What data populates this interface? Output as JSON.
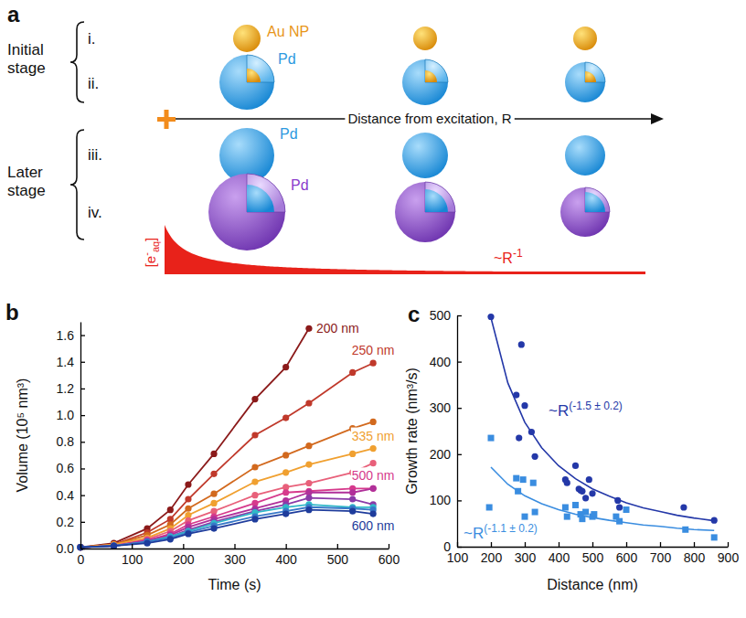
{
  "diagram": {
    "letter": "a",
    "stages": [
      {
        "label": "Initial stage",
        "rows": [
          {
            "label": "i.",
            "caption": "Au NP"
          },
          {
            "label": "ii.",
            "caption": "Pd"
          }
        ]
      },
      {
        "label": "Later stage",
        "rows": [
          {
            "label": "iii.",
            "caption": "Pd"
          },
          {
            "label": "iv.",
            "caption": "Pd"
          }
        ]
      }
    ],
    "axis_label": "Distance from excitation, R",
    "concentration_label": {
      "open": "[e",
      "sup": "-",
      "sub": "aq",
      "close": "]"
    },
    "decay_label": {
      "base": "~R",
      "exponent": "-1"
    }
  },
  "chart_data": [
    {
      "panel_label": "b",
      "type": "line",
      "marker": "circle",
      "x_label": "Time (s)",
      "y_label": "Volume (10⁵ nm³)",
      "x": [
        0,
        65,
        130,
        175,
        210,
        260,
        340,
        400,
        445,
        530,
        570
      ],
      "xlim": [
        0,
        600
      ],
      "xticks": [
        0,
        100,
        200,
        300,
        400,
        500,
        600
      ],
      "ylim": [
        0,
        1.7
      ],
      "yticks": [
        {
          "value": 0,
          "label": "0.0"
        },
        0.2,
        0.4,
        0.6,
        0.8,
        {
          "value": 1,
          "label": "1.0"
        },
        1.2,
        1.4,
        1.6
      ],
      "series": [
        {
          "name": "200 nm",
          "color": "#8b1a1a",
          "values": [
            0.01,
            0.04,
            0.15,
            0.29,
            0.48,
            0.71,
            1.12,
            1.36,
            1.65,
            null,
            null
          ]
        },
        {
          "name": "250 nm",
          "color": "#c0392b",
          "values": [
            0.01,
            0.03,
            0.12,
            0.22,
            0.37,
            0.56,
            0.85,
            0.98,
            1.09,
            1.32,
            1.39
          ]
        },
        {
          "color": "#d2691e",
          "values": [
            0.01,
            0.03,
            0.1,
            0.18,
            0.3,
            0.41,
            0.61,
            0.7,
            0.77,
            0.9,
            0.95
          ]
        },
        {
          "name": "335 nm",
          "color": "#f0a030",
          "values": [
            0.01,
            0.03,
            0.08,
            0.15,
            0.25,
            0.34,
            0.5,
            0.57,
            0.63,
            0.71,
            0.75
          ]
        },
        {
          "color": "#e8607a",
          "values": [
            0.01,
            0.02,
            0.07,
            0.13,
            0.21,
            0.28,
            0.4,
            0.46,
            0.49,
            0.57,
            0.64
          ]
        },
        {
          "name": "500 nm",
          "color": "#d63a8c",
          "values": [
            0.01,
            0.02,
            0.06,
            0.11,
            0.18,
            0.24,
            0.34,
            0.42,
            0.43,
            0.45,
            0.45
          ]
        },
        {
          "color": "#b0309a",
          "values": [
            0.01,
            0.02,
            0.06,
            0.1,
            0.16,
            0.22,
            0.3,
            0.36,
            0.42,
            0.42,
            0.45
          ]
        },
        {
          "color": "#8a3aa8",
          "values": [
            0.01,
            0.02,
            0.05,
            0.09,
            0.14,
            0.2,
            0.28,
            0.33,
            0.38,
            0.37,
            0.33
          ]
        },
        {
          "color": "#30b8c8",
          "values": [
            0.01,
            0.02,
            0.05,
            0.09,
            0.13,
            0.19,
            0.27,
            0.31,
            0.33,
            0.31,
            0.31
          ]
        },
        {
          "color": "#3878c8",
          "values": [
            0.01,
            0.02,
            0.05,
            0.08,
            0.12,
            0.17,
            0.24,
            0.28,
            0.31,
            0.3,
            0.29
          ]
        },
        {
          "name": "600 nm",
          "color": "#1e3c9c",
          "values": [
            0.01,
            0.02,
            0.04,
            0.07,
            0.11,
            0.15,
            0.22,
            0.26,
            0.29,
            0.28,
            0.26
          ]
        }
      ]
    },
    {
      "panel_label": "c",
      "type": "scatter",
      "x_label": "Distance (nm)",
      "y_label": "Growth rate (nm³/s)",
      "xlim": [
        100,
        900
      ],
      "xticks": [
        100,
        200,
        300,
        400,
        500,
        600,
        700,
        800,
        900
      ],
      "ylim": [
        0,
        500
      ],
      "yticks": [
        0,
        100,
        200,
        300,
        400,
        500
      ],
      "series": [
        {
          "type": "scatter",
          "marker": "circle",
          "color": "#2438a8",
          "x": [
            200,
            275,
            283,
            290,
            300,
            320,
            330,
            420,
            425,
            450,
            460,
            465,
            470,
            480,
            490,
            500,
            575,
            580,
            770,
            860
          ],
          "values": [
            497,
            328,
            235,
            437,
            305,
            248,
            195,
            145,
            138,
            175,
            125,
            122,
            120,
            105,
            145,
            115,
            100,
            85,
            85,
            57
          ]
        },
        {
          "type": "scatter",
          "marker": "square",
          "color": "#3a8de0",
          "x": [
            195,
            200,
            275,
            280,
            295,
            300,
            325,
            330,
            420,
            425,
            450,
            465,
            470,
            480,
            500,
            505,
            570,
            580,
            600,
            775,
            860
          ],
          "values": [
            85,
            235,
            148,
            120,
            145,
            65,
            138,
            75,
            85,
            65,
            90,
            70,
            60,
            75,
            65,
            70,
            65,
            55,
            80,
            37,
            20
          ]
        },
        {
          "type": "line",
          "color": "#2438a8",
          "x": [
            200,
            250,
            300,
            350,
            400,
            450,
            500,
            550,
            600,
            650,
            700,
            750,
            800,
            860
          ],
          "values": [
            495,
            354,
            269,
            214,
            175,
            147,
            125,
            109,
            95,
            84,
            76,
            68,
            62,
            56
          ]
        },
        {
          "type": "line",
          "color": "#3a8de0",
          "x": [
            200,
            250,
            300,
            350,
            400,
            450,
            500,
            550,
            600,
            650,
            700,
            750,
            800,
            860
          ],
          "values": [
            172,
            135,
            110,
            93,
            80,
            70,
            63,
            57,
            52,
            47,
            44,
            40,
            37,
            35
          ]
        }
      ],
      "annotations": [
        {
          "base": "~R",
          "exponent": "(-1.5 ± 0.2)",
          "color": "#2438a8"
        },
        {
          "base": "~R",
          "exponent": "(-1.1 ± 0.2)",
          "color": "#3a8de0"
        }
      ]
    }
  ]
}
